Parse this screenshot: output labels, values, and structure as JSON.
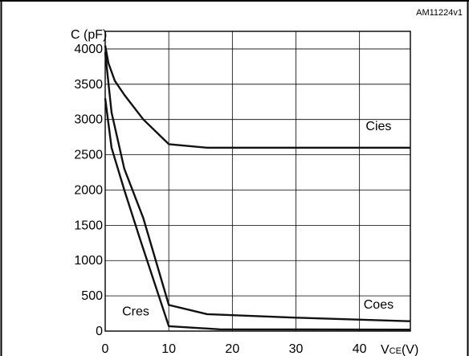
{
  "figure_id": "AM11224v1",
  "chart_data": {
    "type": "line",
    "ylabel": "C (pF)",
    "xlabel": {
      "main": "V",
      "sub": "CE",
      "unit": "(V)"
    },
    "xlim": [
      0,
      48
    ],
    "ylim": [
      0,
      4250
    ],
    "x_ticks": [
      0,
      10,
      20,
      30,
      40
    ],
    "y_ticks": [
      0,
      500,
      1000,
      1500,
      2000,
      2500,
      3000,
      3500,
      4000
    ],
    "grid": true,
    "series": [
      {
        "name": "Cies",
        "points": [
          [
            0,
            4050
          ],
          [
            0.5,
            3800
          ],
          [
            1.5,
            3550
          ],
          [
            3,
            3350
          ],
          [
            6,
            3000
          ],
          [
            10,
            2650
          ],
          [
            16,
            2600
          ],
          [
            48,
            2600
          ]
        ]
      },
      {
        "name": "Coes",
        "points": [
          [
            0,
            3950
          ],
          [
            1,
            3100
          ],
          [
            3,
            2300
          ],
          [
            6,
            1600
          ],
          [
            10,
            370
          ],
          [
            16,
            240
          ],
          [
            30,
            190
          ],
          [
            48,
            140
          ]
        ]
      },
      {
        "name": "Cres",
        "points": [
          [
            0,
            3300
          ],
          [
            1,
            2600
          ],
          [
            3,
            2000
          ],
          [
            5.5,
            1300
          ],
          [
            10,
            70
          ],
          [
            18,
            25
          ],
          [
            48,
            20
          ]
        ]
      }
    ],
    "annotations": [
      {
        "text": "Cies",
        "x": 43,
        "y": 2850
      },
      {
        "text": "Coes",
        "x": 43,
        "y": 320
      },
      {
        "text": "Cres",
        "x": 4.8,
        "y": 220
      }
    ]
  }
}
